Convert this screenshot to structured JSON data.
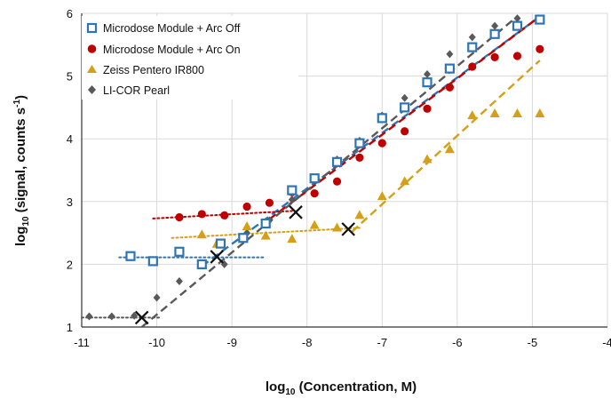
{
  "chart_data": {
    "type": "scatter",
    "xlabel_main": "log",
    "xlabel_sub": "10",
    "xlabel_rest": " (Concentration, M)",
    "ylabel_main": "log",
    "ylabel_sub": "10",
    "ylabel_rest": " (signal, counts s",
    "ylabel_sup": "-1",
    "ylabel_end": ")",
    "xlim": [
      -11,
      -4
    ],
    "ylim": [
      1,
      6
    ],
    "x_ticks": [
      "-11",
      "-10",
      "-9",
      "-8",
      "-7",
      "-6",
      "-5",
      "-4"
    ],
    "y_ticks": [
      "1",
      "2",
      "3",
      "4",
      "5",
      "6"
    ],
    "grid": true,
    "legend_position": "top-left",
    "series": [
      {
        "name": "Microdose Module + Arc Off",
        "color": "#2E75B6",
        "marker": "open-square",
        "points": [
          [
            -10.35,
            2.13
          ],
          [
            -10.05,
            2.05
          ],
          [
            -9.7,
            2.2
          ],
          [
            -9.4,
            2.0
          ],
          [
            -9.15,
            2.33
          ],
          [
            -8.85,
            2.42
          ],
          [
            -8.55,
            2.65
          ],
          [
            -8.2,
            3.18
          ],
          [
            -7.9,
            3.37
          ],
          [
            -7.6,
            3.63
          ],
          [
            -7.3,
            3.93
          ],
          [
            -7.0,
            4.33
          ],
          [
            -6.7,
            4.5
          ],
          [
            -6.4,
            4.9
          ],
          [
            -6.1,
            5.12
          ],
          [
            -5.8,
            5.46
          ],
          [
            -5.5,
            5.67
          ],
          [
            -5.2,
            5.8
          ],
          [
            -4.9,
            5.9
          ]
        ],
        "fit_dotted": [
          [
            -10.5,
            2.11
          ],
          [
            -8.55,
            2.11
          ]
        ],
        "fit_dashed": [
          [
            -9.4,
            1.97
          ],
          [
            -4.9,
            5.95
          ]
        ]
      },
      {
        "name": "Microdose Module + Arc On",
        "color": "#C00000",
        "marker": "circle",
        "points": [
          [
            -9.7,
            2.75
          ],
          [
            -9.4,
            2.8
          ],
          [
            -9.1,
            2.78
          ],
          [
            -8.8,
            2.92
          ],
          [
            -8.5,
            2.98
          ],
          [
            -8.2,
            3.15
          ],
          [
            -7.9,
            3.13
          ],
          [
            -7.6,
            3.32
          ],
          [
            -7.3,
            3.7
          ],
          [
            -7.0,
            3.93
          ],
          [
            -6.7,
            4.12
          ],
          [
            -6.4,
            4.48
          ],
          [
            -6.1,
            4.82
          ],
          [
            -5.8,
            5.15
          ],
          [
            -5.5,
            5.3
          ],
          [
            -5.2,
            5.32
          ],
          [
            -4.9,
            5.43
          ]
        ],
        "fit_dotted": [
          [
            -10.05,
            2.73
          ],
          [
            -8.2,
            2.85
          ]
        ],
        "fit_dashed": [
          [
            -8.5,
            2.72
          ],
          [
            -4.9,
            5.95
          ]
        ]
      },
      {
        "name": "Zeiss Pentero IR800",
        "color": "#D4A017",
        "marker": "triangle",
        "points": [
          [
            -9.7,
            2.18
          ],
          [
            -9.4,
            2.47
          ],
          [
            -9.2,
            2.32
          ],
          [
            -8.8,
            2.6
          ],
          [
            -8.55,
            2.45
          ],
          [
            -8.2,
            2.4
          ],
          [
            -7.9,
            2.62
          ],
          [
            -7.6,
            2.58
          ],
          [
            -7.3,
            2.78
          ],
          [
            -7.0,
            3.08
          ],
          [
            -6.7,
            3.32
          ],
          [
            -6.4,
            3.67
          ],
          [
            -6.1,
            3.83
          ],
          [
            -5.8,
            4.37
          ],
          [
            -5.5,
            4.4
          ],
          [
            -5.2,
            4.4
          ],
          [
            -4.9,
            4.4
          ]
        ],
        "fit_dotted": [
          [
            -9.8,
            2.42
          ],
          [
            -7.3,
            2.58
          ]
        ],
        "fit_dashed": [
          [
            -7.4,
            2.52
          ],
          [
            -4.9,
            5.25
          ]
        ]
      },
      {
        "name": "LI-COR Pearl",
        "color": "#595959",
        "marker": "diamond",
        "points": [
          [
            -10.9,
            1.17
          ],
          [
            -10.6,
            1.17
          ],
          [
            -10.3,
            1.18
          ],
          [
            -10.0,
            1.47
          ],
          [
            -9.7,
            1.73
          ],
          [
            -9.4,
            2.02
          ],
          [
            -9.1,
            2.0
          ],
          [
            -8.8,
            2.5
          ],
          [
            -8.5,
            2.7
          ],
          [
            -8.2,
            3.03
          ],
          [
            -7.9,
            3.37
          ],
          [
            -7.6,
            3.67
          ],
          [
            -7.3,
            3.97
          ],
          [
            -7.0,
            4.37
          ],
          [
            -6.7,
            4.65
          ],
          [
            -6.4,
            5.03
          ],
          [
            -6.1,
            5.35
          ],
          [
            -5.8,
            5.62
          ],
          [
            -5.5,
            5.8
          ],
          [
            -5.2,
            5.92
          ]
        ],
        "fit_dotted": [
          [
            -11.0,
            1.15
          ],
          [
            -9.95,
            1.15
          ]
        ],
        "fit_dashed": [
          [
            -10.2,
            1.0
          ],
          [
            -5.2,
            5.95
          ]
        ]
      }
    ],
    "intersections": [
      [
        -10.2,
        1.15
      ],
      [
        -9.2,
        2.12
      ],
      [
        -8.15,
        2.83
      ],
      [
        -7.45,
        2.56
      ]
    ]
  }
}
